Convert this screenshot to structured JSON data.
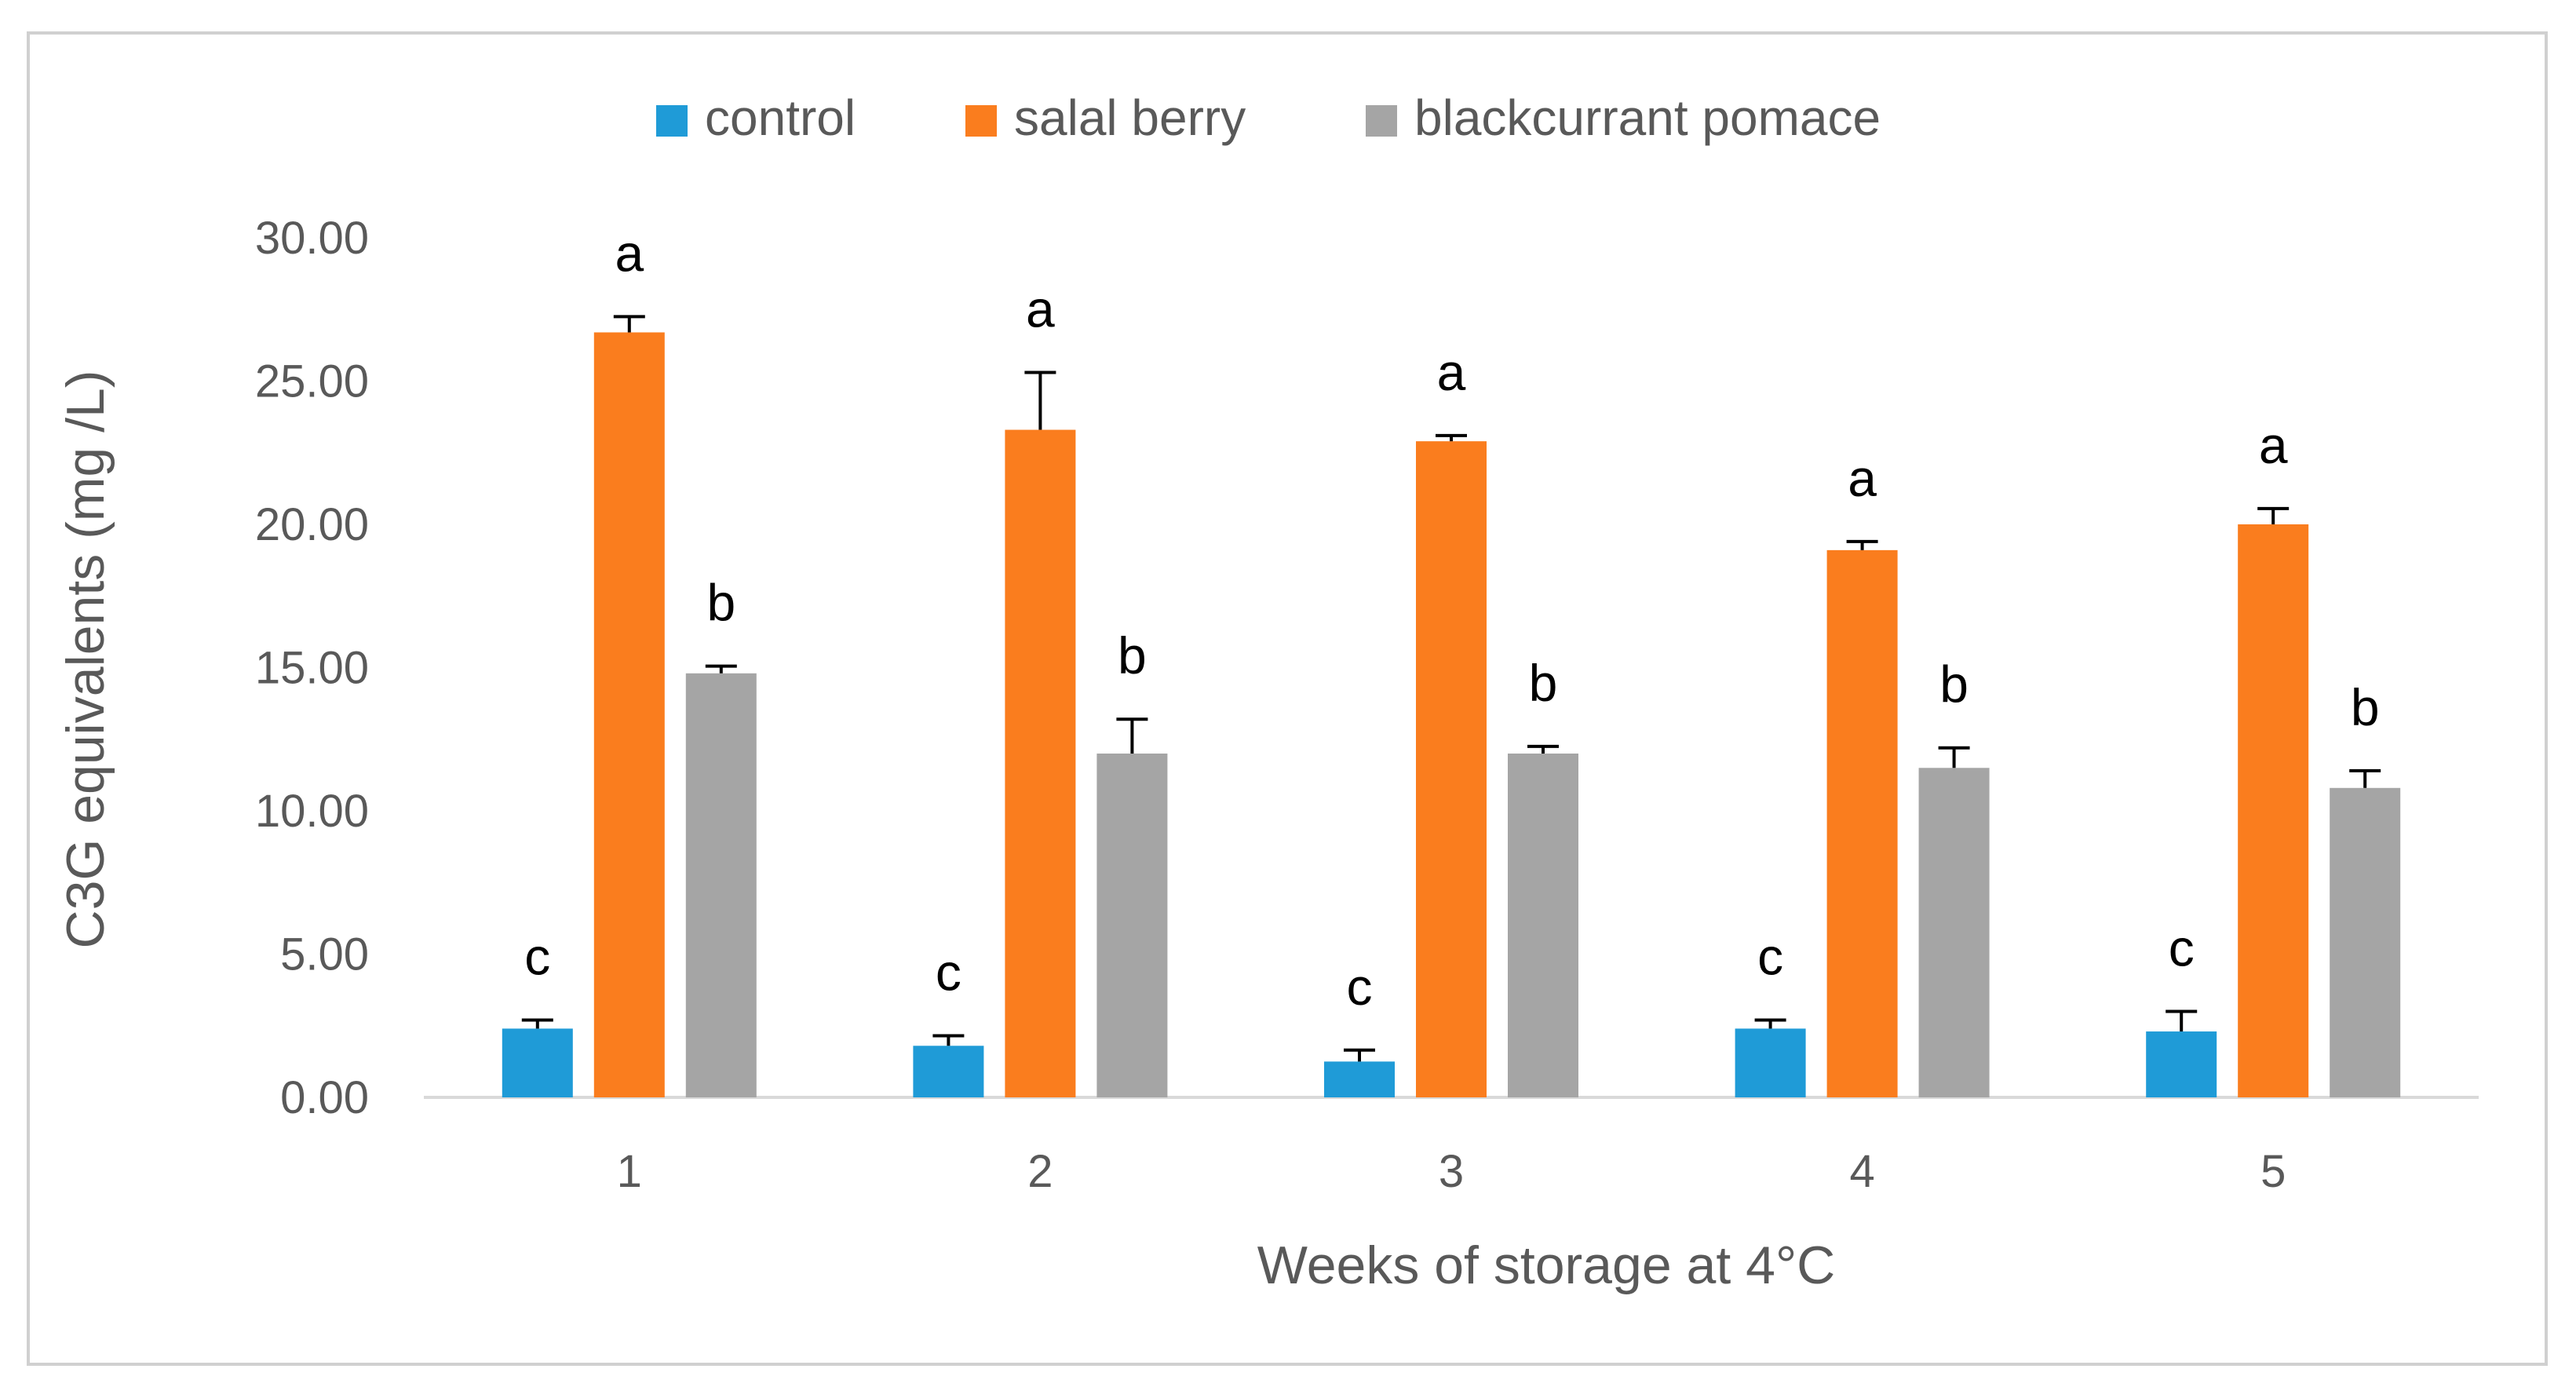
{
  "chart_data": {
    "type": "bar",
    "title": "",
    "xlabel": "Weeks of storage at 4°C",
    "ylabel": "C3G equivalents (mg /L)",
    "ylim": [
      0,
      30
    ],
    "yticks": [
      "0.00",
      "5.00",
      "10.00",
      "15.00",
      "20.00",
      "25.00",
      "30.00"
    ],
    "categories": [
      "1",
      "2",
      "3",
      "4",
      "5"
    ],
    "legend_position": "top",
    "grid": false,
    "series": [
      {
        "name": "control",
        "color": "#1F9BD7",
        "values": [
          2.4,
          1.8,
          1.25,
          2.4,
          2.3
        ],
        "errors": [
          0.3,
          0.35,
          0.4,
          0.3,
          0.7
        ],
        "letters": [
          "c",
          "c",
          "c",
          "c",
          "c"
        ]
      },
      {
        "name": "salal berry",
        "color": "#FA7D1E",
        "values": [
          26.7,
          23.3,
          22.9,
          19.1,
          20.0
        ],
        "errors": [
          0.55,
          2.0,
          0.2,
          0.3,
          0.55
        ],
        "letters": [
          "a",
          "a",
          "a",
          "a",
          "a"
        ]
      },
      {
        "name": "blackcurrant pomace",
        "color": "#A5A5A5",
        "values": [
          14.8,
          12.0,
          12.0,
          11.5,
          10.8
        ],
        "errors": [
          0.25,
          1.2,
          0.25,
          0.7,
          0.6
        ],
        "letters": [
          "b",
          "b",
          "b",
          "b",
          "b"
        ]
      }
    ]
  }
}
